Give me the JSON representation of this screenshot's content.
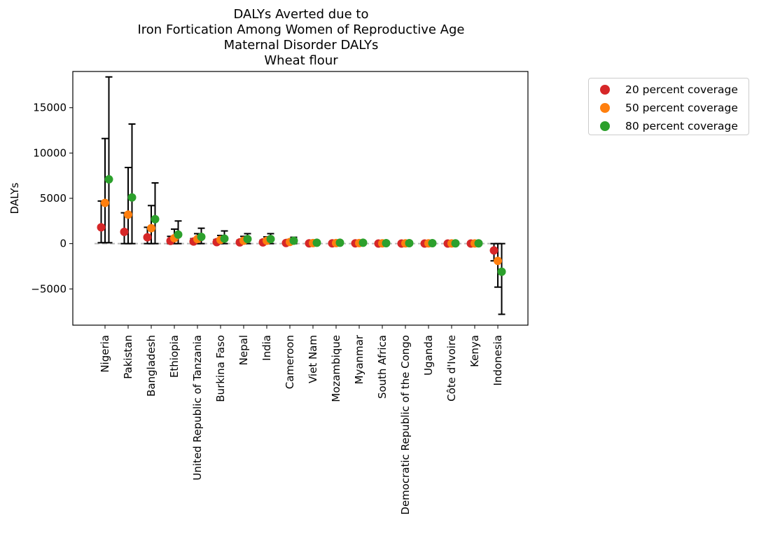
{
  "chart_data": {
    "type": "scatter",
    "title_lines": [
      "DALYs Averted due to",
      "Iron Fortication Among Women of Reproductive Age",
      "Maternal Disorder DALYs",
      "Wheat flour"
    ],
    "xlabel": "",
    "ylabel": "DALYs",
    "ylim": [
      -9000,
      19000
    ],
    "yticks": [
      -5000,
      0,
      5000,
      10000,
      15000
    ],
    "ytick_labels": [
      "−5000",
      "0",
      "5000",
      "10000",
      "15000"
    ],
    "zero_line": true,
    "legend_position": "outside-right-top",
    "categories": [
      "Nigeria",
      "Pakistan",
      "Bangladesh",
      "Ethiopia",
      "United Republic of Tanzania",
      "Burkina Faso",
      "Nepal",
      "India",
      "Cameroon",
      "Viet Nam",
      "Mozambique",
      "Myanmar",
      "South Africa",
      "Democratic Republic of the Congo",
      "Uganda",
      "Côte d'Ivoire",
      "Kenya",
      "Indonesia"
    ],
    "series": [
      {
        "name": "20 percent coverage",
        "color": "#d62728",
        "values": [
          1800,
          1300,
          700,
          300,
          230,
          170,
          140,
          140,
          70,
          30,
          30,
          30,
          15,
          15,
          15,
          10,
          10,
          -750
        ],
        "lower": [
          100,
          0,
          0,
          0,
          0,
          0,
          0,
          0,
          0,
          0,
          0,
          0,
          0,
          0,
          0,
          0,
          0,
          -1900
        ],
        "upper": [
          4700,
          3400,
          1800,
          800,
          550,
          450,
          380,
          380,
          180,
          60,
          60,
          60,
          30,
          30,
          30,
          20,
          20,
          0
        ]
      },
      {
        "name": "50 percent coverage",
        "color": "#ff7f0e",
        "values": [
          4500,
          3200,
          1700,
          600,
          500,
          420,
          320,
          320,
          180,
          60,
          60,
          60,
          30,
          30,
          30,
          20,
          20,
          -1900
        ],
        "lower": [
          100,
          0,
          0,
          0,
          0,
          0,
          0,
          0,
          0,
          0,
          0,
          0,
          0,
          0,
          0,
          0,
          0,
          -4800
        ],
        "upper": [
          11600,
          8400,
          4200,
          1600,
          1100,
          900,
          800,
          750,
          450,
          130,
          130,
          130,
          60,
          60,
          60,
          40,
          40,
          0
        ]
      },
      {
        "name": "80 percent coverage",
        "color": "#2ca02c",
        "values": [
          7100,
          5100,
          2700,
          1000,
          750,
          550,
          500,
          500,
          320,
          100,
          100,
          100,
          50,
          50,
          50,
          30,
          30,
          -3100
        ],
        "lower": [
          100,
          0,
          0,
          0,
          0,
          0,
          0,
          0,
          0,
          0,
          0,
          0,
          0,
          0,
          0,
          0,
          0,
          -7800
        ],
        "upper": [
          18400,
          13200,
          6700,
          2500,
          1700,
          1400,
          1100,
          1100,
          700,
          220,
          220,
          220,
          110,
          110,
          110,
          70,
          70,
          0
        ]
      }
    ]
  }
}
